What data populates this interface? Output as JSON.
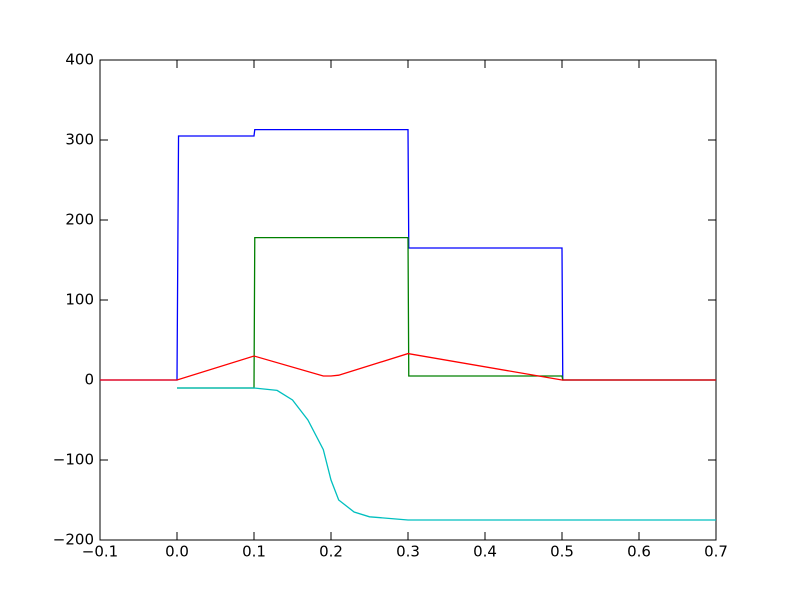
{
  "chart_data": {
    "type": "line",
    "xlim": [
      -0.1,
      0.7
    ],
    "ylim": [
      -200,
      400
    ],
    "xticks": [
      {
        "value": -0.1,
        "label": "−0.1"
      },
      {
        "value": 0,
        "label": "0.0"
      },
      0.1,
      0.2,
      0.3,
      0.4,
      0.5,
      0.6,
      0.7
    ],
    "yticks": [
      {
        "value": -200,
        "label": "−200"
      },
      {
        "value": -100,
        "label": "−100"
      },
      0,
      100,
      200,
      300,
      400
    ],
    "grid": false,
    "series": [
      {
        "color": "#0000ff",
        "x": [
          -0.1,
          0,
          0.002,
          0.1,
          0.101,
          0.3,
          0.301,
          0.5,
          0.501,
          0.7
        ],
        "values": [
          0,
          0,
          305,
          305,
          313,
          313,
          165,
          165,
          0,
          0
        ]
      },
      {
        "color": "#008000",
        "x": [
          0,
          0.1,
          0.101,
          0.3,
          0.301,
          0.5,
          0.501,
          0.7
        ],
        "values": [
          -10,
          -10,
          178,
          178,
          5,
          5,
          0,
          0
        ]
      },
      {
        "color": "#ff0000",
        "x": [
          -0.1,
          0,
          0.1,
          0.19,
          0.2,
          0.21,
          0.3,
          0.5,
          0.7
        ],
        "values": [
          0,
          0,
          30,
          5,
          5,
          6,
          33,
          0,
          0
        ]
      },
      {
        "color": "#00bfbf",
        "x": [
          0,
          0.1,
          0.13,
          0.15,
          0.17,
          0.19,
          0.2,
          0.21,
          0.23,
          0.25,
          0.3,
          0.7
        ],
        "values": [
          -10,
          -10,
          -13,
          -25,
          -50,
          -87,
          -125,
          -150,
          -165,
          -171,
          -175,
          -175
        ]
      }
    ]
  }
}
